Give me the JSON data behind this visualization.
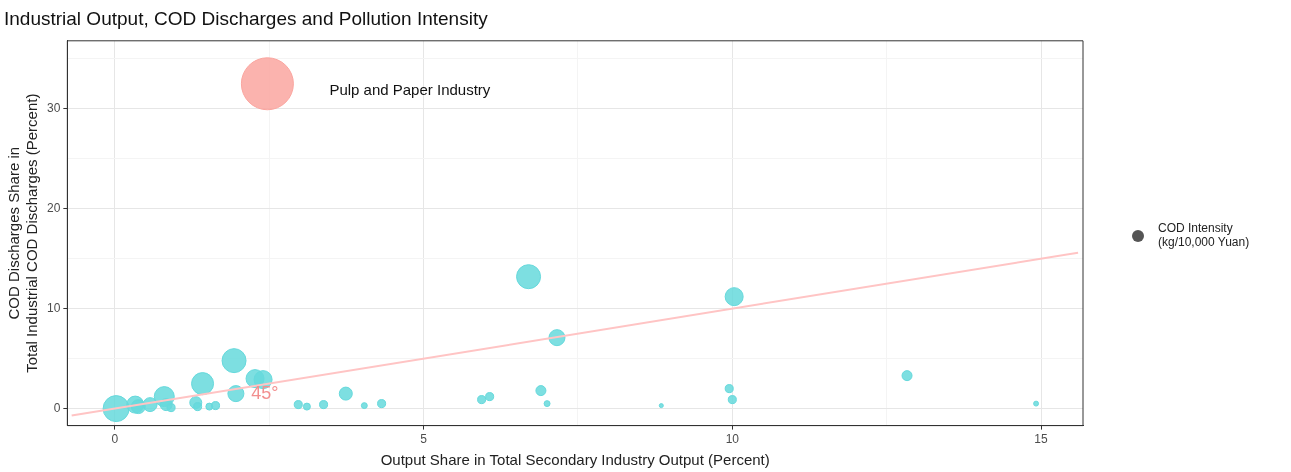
{
  "chart_data": {
    "type": "bubble",
    "title": "Industrial Output, COD Discharges and Pollution Intensity",
    "xlabel": "Output Share in Total Secondary Industry Output (Percent)",
    "ylabel": "COD Discharges Share in\nTotal Industrial COD Discharges (Percent)",
    "legend_title": "COD Intensity\n(kg/10,000 Yuan)",
    "xlim": [
      -0.77,
      15.68
    ],
    "ylim": [
      -1.7,
      36.8
    ],
    "xticks": [
      0,
      {
        "value": 2.5,
        "label": null
      },
      5,
      {
        "value": 7.5,
        "label": null
      },
      10,
      {
        "value": 12.5,
        "label": null
      },
      15
    ],
    "yticks": [
      0,
      {
        "value": 5,
        "label": null
      },
      10,
      {
        "value": 15,
        "label": null
      },
      20,
      {
        "value": 25,
        "label": null
      },
      30,
      {
        "value": 35,
        "label": null
      }
    ],
    "grid": true,
    "series": [
      {
        "type": "line",
        "color": "#ffc4c4",
        "x": [
          -0.7,
          15.6
        ],
        "values": [
          -0.7,
          15.6
        ]
      },
      {
        "type": "bubble",
        "color": "#66d9dc",
        "x": [
          0.02,
          0.33,
          0.38,
          0.57,
          0.8,
          0.83,
          0.91,
          1.31,
          1.34,
          1.53,
          1.63,
          1.42,
          1.93,
          1.96,
          2.27,
          2.4,
          2.97,
          3.11,
          3.38,
          3.74,
          4.04,
          4.32,
          6.7,
          7.16,
          10.03,
          5.94,
          6.07,
          6.9,
          7.0,
          8.85,
          9.95,
          10.0,
          12.83,
          14.92
        ],
        "values": [
          0.0,
          0.4,
          0.2,
          0.4,
          1.2,
          0.4,
          0.1,
          0.6,
          0.2,
          0.2,
          0.3,
          2.5,
          4.8,
          1.5,
          3.0,
          2.9,
          0.4,
          0.2,
          0.4,
          1.5,
          0.3,
          0.5,
          13.2,
          7.1,
          11.2,
          0.9,
          1.2,
          1.8,
          0.5,
          0.3,
          2.0,
          0.9,
          3.3,
          0.5
        ],
        "sizes": [
          0.25,
          0.107,
          0.072,
          0.072,
          0.148,
          0.053,
          0.024,
          0.053,
          0.024,
          0.018,
          0.024,
          0.179,
          0.213,
          0.095,
          0.12,
          0.12,
          0.024,
          0.018,
          0.024,
          0.0625,
          0.013,
          0.024,
          0.213,
          0.095,
          0.12,
          0.024,
          0.024,
          0.037,
          0.013,
          0.006,
          0.024,
          0.024,
          0.037,
          0.009
        ]
      },
      {
        "type": "bubble",
        "color": "#faa59f",
        "x": [
          2.47
        ],
        "values": [
          32.5
        ],
        "sizes": [
          1
        ]
      }
    ],
    "annotations": [
      "Pulp and Paper Industry",
      {
        "text": "45°",
        "x": 2.43,
        "y": 1.5
      }
    ]
  }
}
